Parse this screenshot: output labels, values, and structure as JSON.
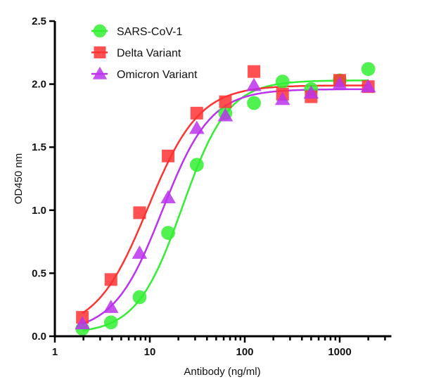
{
  "chart_data": {
    "type": "scatter",
    "title": "",
    "xlabel": "Antibody (ng/ml)",
    "ylabel": "OD450 nm",
    "xscale": "log",
    "xlim": [
      1,
      3500
    ],
    "ylim": [
      0,
      2.5
    ],
    "xticks": [
      1,
      10,
      100,
      1000
    ],
    "xtick_labels": [
      "1",
      "10",
      "100",
      "1000"
    ],
    "yticks": [
      0,
      0.5,
      1.0,
      1.5,
      2.0,
      2.5
    ],
    "ytick_labels": [
      "0.0",
      "0.5",
      "1.0",
      "1.5",
      "2.0",
      "2.5"
    ],
    "grid": false,
    "legend_position": "top-left",
    "x": [
      1.95,
      3.9,
      7.8,
      15.6,
      31.25,
      62.5,
      125,
      250,
      500,
      1000,
      2000
    ],
    "series": [
      {
        "name": "SARS-CoV-1",
        "marker": "circle",
        "color": "#33ee33",
        "values": [
          0.06,
          0.11,
          0.31,
          0.82,
          1.36,
          1.77,
          1.85,
          2.02,
          1.96,
          2.03,
          2.12
        ]
      },
      {
        "name": "Delta Variant",
        "marker": "square",
        "color": "#ff3333",
        "values": [
          0.15,
          0.45,
          0.98,
          1.43,
          1.77,
          1.86,
          2.1,
          1.92,
          1.9,
          2.03,
          1.98
        ]
      },
      {
        "name": "Omicron Variant",
        "marker": "triangle",
        "color": "#bb33ee",
        "values": [
          0.1,
          0.23,
          0.66,
          1.1,
          1.65,
          1.75,
          1.99,
          1.88,
          1.93,
          2.0,
          1.98
        ]
      }
    ]
  }
}
